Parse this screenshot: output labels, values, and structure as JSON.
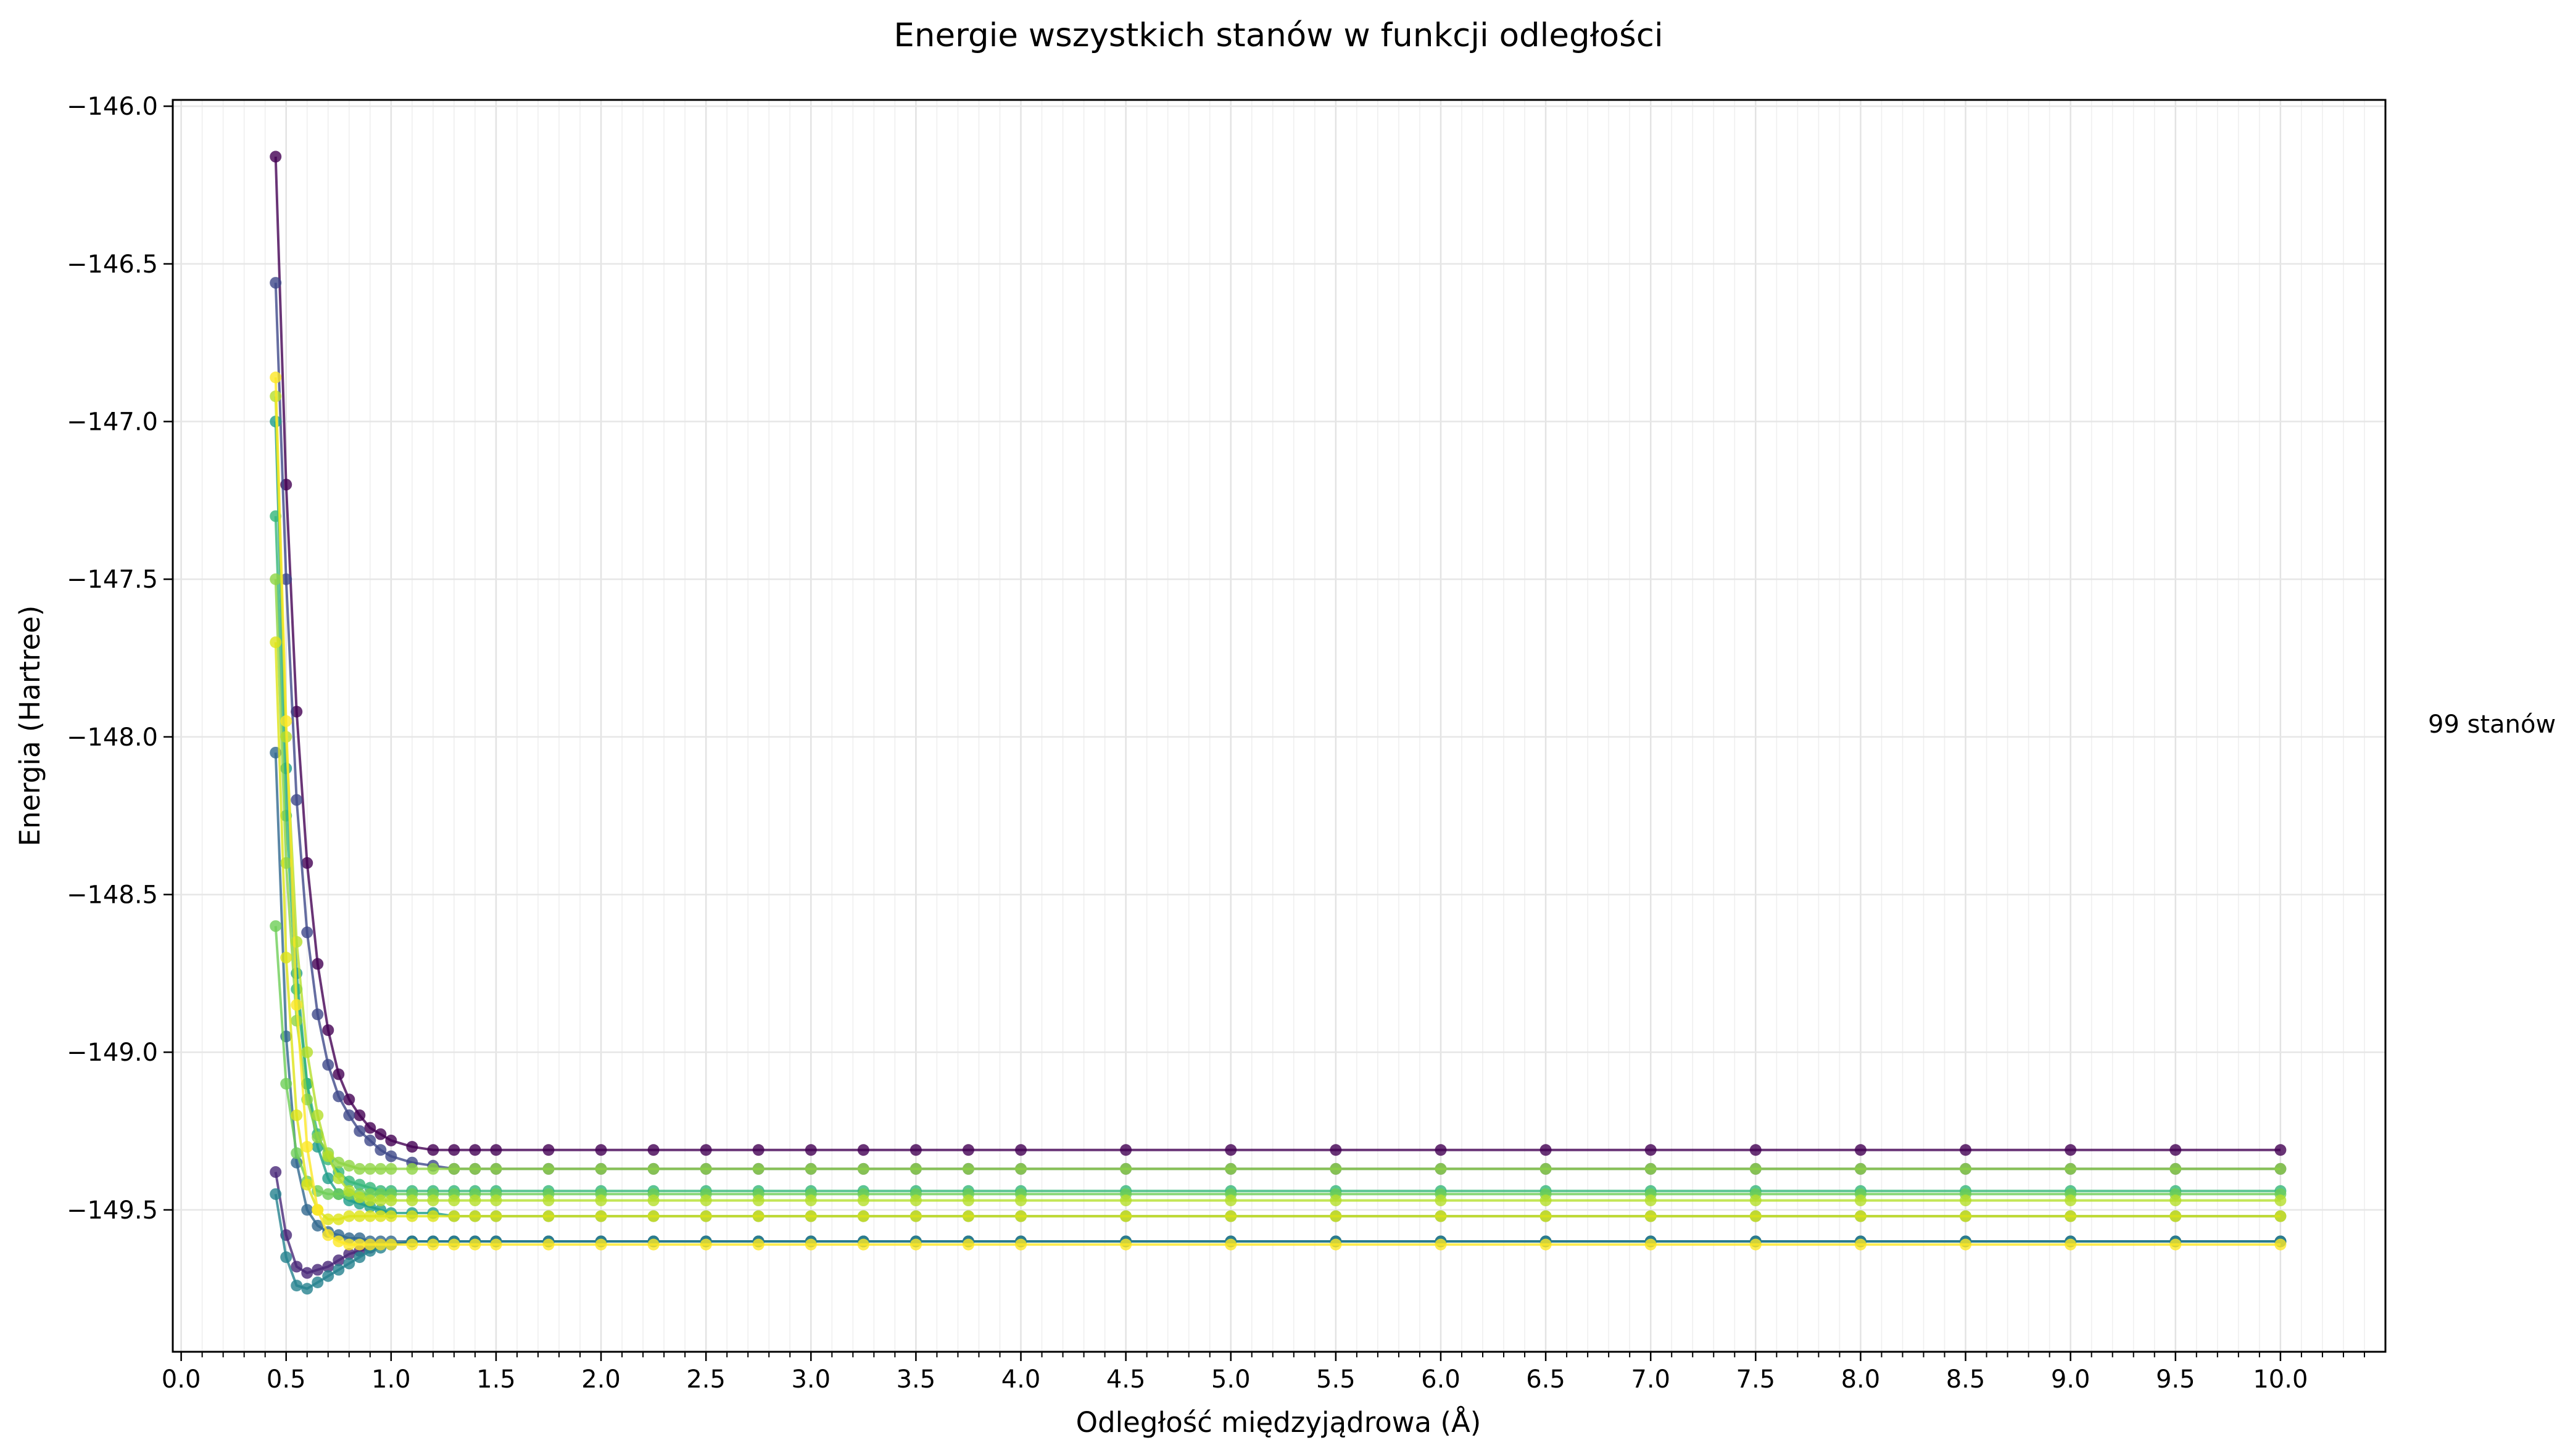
{
  "chart_data": {
    "type": "line",
    "title": "Energie wszystkich stanów w funkcji odległości",
    "xlabel": "Odległość międzyjądrowa (Å)",
    "ylabel": "Energia (Hartree)",
    "xlim": [
      -0.04,
      10.5
    ],
    "ylim": [
      -149.95,
      -145.98
    ],
    "x_ticks": [
      "0.0",
      "0.5",
      "1.0",
      "1.5",
      "2.0",
      "2.5",
      "3.0",
      "3.5",
      "4.0",
      "4.5",
      "5.0",
      "5.5",
      "6.0",
      "6.5",
      "7.0",
      "7.5",
      "8.0",
      "8.5",
      "9.0",
      "9.5",
      "10.0"
    ],
    "y_ticks": [
      "−146.0",
      "−146.5",
      "−147.0",
      "−147.5",
      "−148.0",
      "−148.5",
      "−149.0",
      "−149.5"
    ],
    "grid": true,
    "colormap": "viridis",
    "annotation": "99 stanów",
    "x": [
      0.45,
      0.5,
      0.55,
      0.6,
      0.65,
      0.7,
      0.75,
      0.8,
      0.85,
      0.9,
      0.95,
      1.0,
      1.1,
      1.2,
      1.3,
      1.4,
      1.5,
      1.75,
      2.0,
      2.25,
      2.5,
      2.75,
      3.0,
      3.25,
      3.5,
      3.75,
      4.0,
      4.5,
      5.0,
      5.5,
      6.0,
      6.5,
      7.0,
      7.5,
      8.0,
      8.5,
      9.0,
      9.5,
      10.0
    ],
    "series": [
      {
        "color": "#440154",
        "values": [
          -146.16,
          -147.2,
          -147.92,
          -148.4,
          -148.72,
          -148.93,
          -149.07,
          -149.15,
          -149.2,
          -149.24,
          -149.26,
          -149.28,
          -149.3,
          -149.31,
          -149.31,
          -149.31,
          -149.31,
          -149.31,
          -149.31,
          -149.31,
          -149.31,
          -149.31,
          -149.31,
          -149.31,
          -149.31,
          -149.31,
          -149.31,
          -149.31,
          -149.31,
          -149.31,
          -149.31,
          -149.31,
          -149.31,
          -149.31,
          -149.31,
          -149.31,
          -149.31,
          -149.31,
          -149.31
        ]
      },
      {
        "color": "#482878",
        "values": [
          -149.38,
          -149.58,
          -149.68,
          -149.7,
          -149.69,
          -149.68,
          -149.66,
          -149.64,
          -149.63,
          -149.62,
          -149.61,
          -149.61,
          -149.6,
          -149.6,
          -149.6,
          -149.6,
          -149.6,
          -149.6,
          -149.6,
          -149.6,
          -149.6,
          -149.6,
          -149.6,
          -149.6,
          -149.6,
          -149.6,
          -149.6,
          -149.6,
          -149.6,
          -149.6,
          -149.6,
          -149.6,
          -149.6,
          -149.6,
          -149.6,
          -149.6,
          -149.6,
          -149.6,
          -149.6
        ]
      },
      {
        "color": "#3e4989",
        "values": [
          -146.56,
          -147.5,
          -148.2,
          -148.62,
          -148.88,
          -149.04,
          -149.14,
          -149.2,
          -149.25,
          -149.28,
          -149.31,
          -149.33,
          -149.35,
          -149.36,
          -149.37,
          -149.37,
          -149.37,
          -149.37,
          -149.37,
          -149.37,
          -149.37,
          -149.37,
          -149.37,
          -149.37,
          -149.37,
          -149.37,
          -149.37,
          -149.37,
          -149.37,
          -149.37,
          -149.37,
          -149.37,
          -149.37,
          -149.37,
          -149.37,
          -149.37,
          -149.37,
          -149.37,
          -149.37
        ]
      },
      {
        "color": "#31688e",
        "values": [
          -148.05,
          -148.95,
          -149.35,
          -149.5,
          -149.55,
          -149.57,
          -149.58,
          -149.59,
          -149.59,
          -149.6,
          -149.6,
          -149.6,
          -149.6,
          -149.6,
          -149.6,
          -149.6,
          -149.6,
          -149.6,
          -149.6,
          -149.6,
          -149.6,
          -149.6,
          -149.6,
          -149.6,
          -149.6,
          -149.6,
          -149.6,
          -149.6,
          -149.6,
          -149.6,
          -149.6,
          -149.6,
          -149.6,
          -149.6,
          -149.6,
          -149.6,
          -149.6,
          -149.6,
          -149.6
        ]
      },
      {
        "color": "#26828e",
        "values": [
          -149.45,
          -149.65,
          -149.74,
          -149.75,
          -149.73,
          -149.71,
          -149.69,
          -149.67,
          -149.65,
          -149.63,
          -149.62,
          -149.61,
          -149.6,
          -149.6,
          -149.6,
          -149.6,
          -149.6,
          -149.6,
          -149.6,
          -149.6,
          -149.6,
          -149.6,
          -149.6,
          -149.6,
          -149.6,
          -149.6,
          -149.6,
          -149.6,
          -149.6,
          -149.6,
          -149.6,
          -149.6,
          -149.6,
          -149.6,
          -149.6,
          -149.6,
          -149.6,
          -149.6,
          -149.6
        ]
      },
      {
        "color": "#1f9e89",
        "values": [
          -147.0,
          -148.1,
          -148.75,
          -149.1,
          -149.3,
          -149.4,
          -149.45,
          -149.47,
          -149.48,
          -149.49,
          -149.5,
          -149.51,
          -149.51,
          -149.51,
          -149.52,
          -149.52,
          -149.52,
          -149.52,
          -149.52,
          -149.52,
          -149.52,
          -149.52,
          -149.52,
          -149.52,
          -149.52,
          -149.52,
          -149.52,
          -149.52,
          -149.52,
          -149.52,
          -149.52,
          -149.52,
          -149.52,
          -149.52,
          -149.52,
          -149.52,
          -149.52,
          -149.52,
          -149.52
        ]
      },
      {
        "color": "#35b779",
        "values": [
          -147.3,
          -148.25,
          -148.8,
          -149.1,
          -149.26,
          -149.34,
          -149.38,
          -149.41,
          -149.42,
          -149.43,
          -149.44,
          -149.44,
          -149.44,
          -149.44,
          -149.44,
          -149.44,
          -149.44,
          -149.44,
          -149.44,
          -149.44,
          -149.44,
          -149.44,
          -149.44,
          -149.44,
          -149.44,
          -149.44,
          -149.44,
          -149.44,
          -149.44,
          -149.44,
          -149.44,
          -149.44,
          -149.44,
          -149.44,
          -149.44,
          -149.44,
          -149.44,
          -149.44,
          -149.44
        ]
      },
      {
        "color": "#6ece58",
        "values": [
          -148.6,
          -149.1,
          -149.32,
          -149.41,
          -149.44,
          -149.45,
          -149.45,
          -149.45,
          -149.45,
          -149.45,
          -149.45,
          -149.45,
          -149.45,
          -149.45,
          -149.45,
          -149.45,
          -149.45,
          -149.45,
          -149.45,
          -149.45,
          -149.45,
          -149.45,
          -149.45,
          -149.45,
          -149.45,
          -149.45,
          -149.45,
          -149.45,
          -149.45,
          -149.45,
          -149.45,
          -149.45,
          -149.45,
          -149.45,
          -149.45,
          -149.45,
          -149.45,
          -149.45,
          -149.45
        ]
      },
      {
        "color": "#8ed544",
        "values": [
          -147.5,
          -148.4,
          -148.9,
          -149.15,
          -149.27,
          -149.32,
          -149.35,
          -149.36,
          -149.37,
          -149.37,
          -149.37,
          -149.37,
          -149.37,
          -149.37,
          -149.37,
          -149.37,
          -149.37,
          -149.37,
          -149.37,
          -149.37,
          -149.37,
          -149.37,
          -149.37,
          -149.37,
          -149.37,
          -149.37,
          -149.37,
          -149.37,
          -149.37,
          -149.37,
          -149.37,
          -149.37,
          -149.37,
          -149.37,
          -149.37,
          -149.37,
          -149.37,
          -149.37,
          -149.37
        ]
      },
      {
        "color": "#b5de2b",
        "values": [
          -146.92,
          -148.0,
          -148.65,
          -149.0,
          -149.2,
          -149.33,
          -149.4,
          -149.44,
          -149.46,
          -149.47,
          -149.47,
          -149.47,
          -149.47,
          -149.47,
          -149.47,
          -149.47,
          -149.47,
          -149.47,
          -149.47,
          -149.47,
          -149.47,
          -149.47,
          -149.47,
          -149.47,
          -149.47,
          -149.47,
          -149.47,
          -149.47,
          -149.47,
          -149.47,
          -149.47,
          -149.47,
          -149.47,
          -149.47,
          -149.47,
          -149.47,
          -149.47,
          -149.47,
          -149.47
        ]
      },
      {
        "color": "#dde318",
        "values": [
          -147.7,
          -148.7,
          -149.2,
          -149.42,
          -149.5,
          -149.53,
          -149.53,
          -149.52,
          -149.52,
          -149.52,
          -149.52,
          -149.52,
          -149.52,
          -149.52,
          -149.52,
          -149.52,
          -149.52,
          -149.52,
          -149.52,
          -149.52,
          -149.52,
          -149.52,
          -149.52,
          -149.52,
          -149.52,
          -149.52,
          -149.52,
          -149.52,
          -149.52,
          -149.52,
          -149.52,
          -149.52,
          -149.52,
          -149.52,
          -149.52,
          -149.52,
          -149.52,
          -149.52,
          -149.52
        ]
      },
      {
        "color": "#fde725",
        "values": [
          -146.86,
          -147.95,
          -148.85,
          -149.3,
          -149.5,
          -149.58,
          -149.6,
          -149.61,
          -149.61,
          -149.61,
          -149.61,
          -149.61,
          -149.61,
          -149.61,
          -149.61,
          -149.61,
          -149.61,
          -149.61,
          -149.61,
          -149.61,
          -149.61,
          -149.61,
          -149.61,
          -149.61,
          -149.61,
          -149.61,
          -149.61,
          -149.61,
          -149.61,
          -149.61,
          -149.61,
          -149.61,
          -149.61,
          -149.61,
          -149.61,
          -149.61,
          -149.61,
          -149.61,
          -149.61
        ]
      }
    ]
  }
}
